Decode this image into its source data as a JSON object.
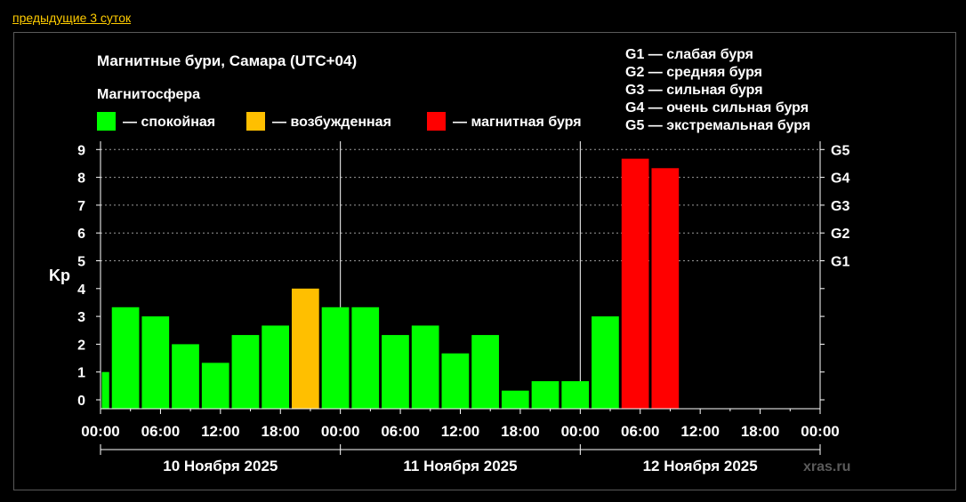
{
  "nav": {
    "prev_link": "предыдущие 3 суток"
  },
  "watermark": "xras.ru",
  "chart_data": {
    "type": "bar",
    "title": "Магнитные бури, Самара (UTC+04)",
    "subtitle": "Магнитосфера",
    "ylabel": "Kp",
    "ylim": [
      0,
      9
    ],
    "yticks": [
      "0",
      "1",
      "2",
      "3",
      "4",
      "5",
      "6",
      "7",
      "8",
      "9"
    ],
    "g_levels": [
      {
        "label": "G1",
        "kp": 5
      },
      {
        "label": "G2",
        "kp": 6
      },
      {
        "label": "G3",
        "kp": 7
      },
      {
        "label": "G4",
        "kp": 8
      },
      {
        "label": "G5",
        "kp": 9
      }
    ],
    "g_legend": [
      "G1 — слабая буря",
      "G2 — средняя буря",
      "G3 — сильная буря",
      "G4 — очень сильная буря",
      "G5 — экстремальная буря"
    ],
    "status_legend": [
      {
        "label": "— спокойная",
        "color": "#00ff00"
      },
      {
        "label": "— возбужденная",
        "color": "#ffbf00"
      },
      {
        "label": "— магнитная буря",
        "color": "#ff0000"
      }
    ],
    "grid": "dashed horizontal at Kp 5–9",
    "x_tick_labels": [
      "00:00",
      "06:00",
      "12:00",
      "18:00",
      "00:00",
      "06:00",
      "12:00",
      "18:00",
      "00:00",
      "06:00",
      "12:00",
      "18:00",
      "00:00"
    ],
    "dates": [
      "10 Ноября 2025",
      "11 Ноября 2025",
      "12 Ноября 2025"
    ],
    "x_range_hours": [
      0,
      72
    ],
    "bars": [
      {
        "start_h": 0,
        "end_h": 1,
        "kp": 1.0,
        "status": "calm"
      },
      {
        "start_h": 1,
        "end_h": 4,
        "kp": 3.33,
        "status": "calm"
      },
      {
        "start_h": 4,
        "end_h": 7,
        "kp": 3.0,
        "status": "calm"
      },
      {
        "start_h": 7,
        "end_h": 10,
        "kp": 2.0,
        "status": "calm"
      },
      {
        "start_h": 10,
        "end_h": 13,
        "kp": 1.33,
        "status": "calm"
      },
      {
        "start_h": 13,
        "end_h": 16,
        "kp": 2.33,
        "status": "calm"
      },
      {
        "start_h": 16,
        "end_h": 19,
        "kp": 2.67,
        "status": "calm"
      },
      {
        "start_h": 19,
        "end_h": 22,
        "kp": 4.0,
        "status": "active"
      },
      {
        "start_h": 22,
        "end_h": 25,
        "kp": 3.33,
        "status": "calm"
      },
      {
        "start_h": 25,
        "end_h": 28,
        "kp": 3.33,
        "status": "calm"
      },
      {
        "start_h": 28,
        "end_h": 31,
        "kp": 2.33,
        "status": "calm"
      },
      {
        "start_h": 31,
        "end_h": 34,
        "kp": 2.67,
        "status": "calm"
      },
      {
        "start_h": 34,
        "end_h": 37,
        "kp": 1.67,
        "status": "calm"
      },
      {
        "start_h": 37,
        "end_h": 40,
        "kp": 2.33,
        "status": "calm"
      },
      {
        "start_h": 40,
        "end_h": 43,
        "kp": 0.33,
        "status": "calm"
      },
      {
        "start_h": 43,
        "end_h": 46,
        "kp": 0.67,
        "status": "calm"
      },
      {
        "start_h": 46,
        "end_h": 49,
        "kp": 0.67,
        "status": "calm"
      },
      {
        "start_h": 49,
        "end_h": 52,
        "kp": 3.0,
        "status": "calm"
      },
      {
        "start_h": 52,
        "end_h": 55,
        "kp": 8.67,
        "status": "storm"
      },
      {
        "start_h": 55,
        "end_h": 58,
        "kp": 8.33,
        "status": "storm"
      }
    ],
    "status_colors": {
      "calm": "#00ff00",
      "active": "#ffbf00",
      "storm": "#ff0000"
    }
  }
}
